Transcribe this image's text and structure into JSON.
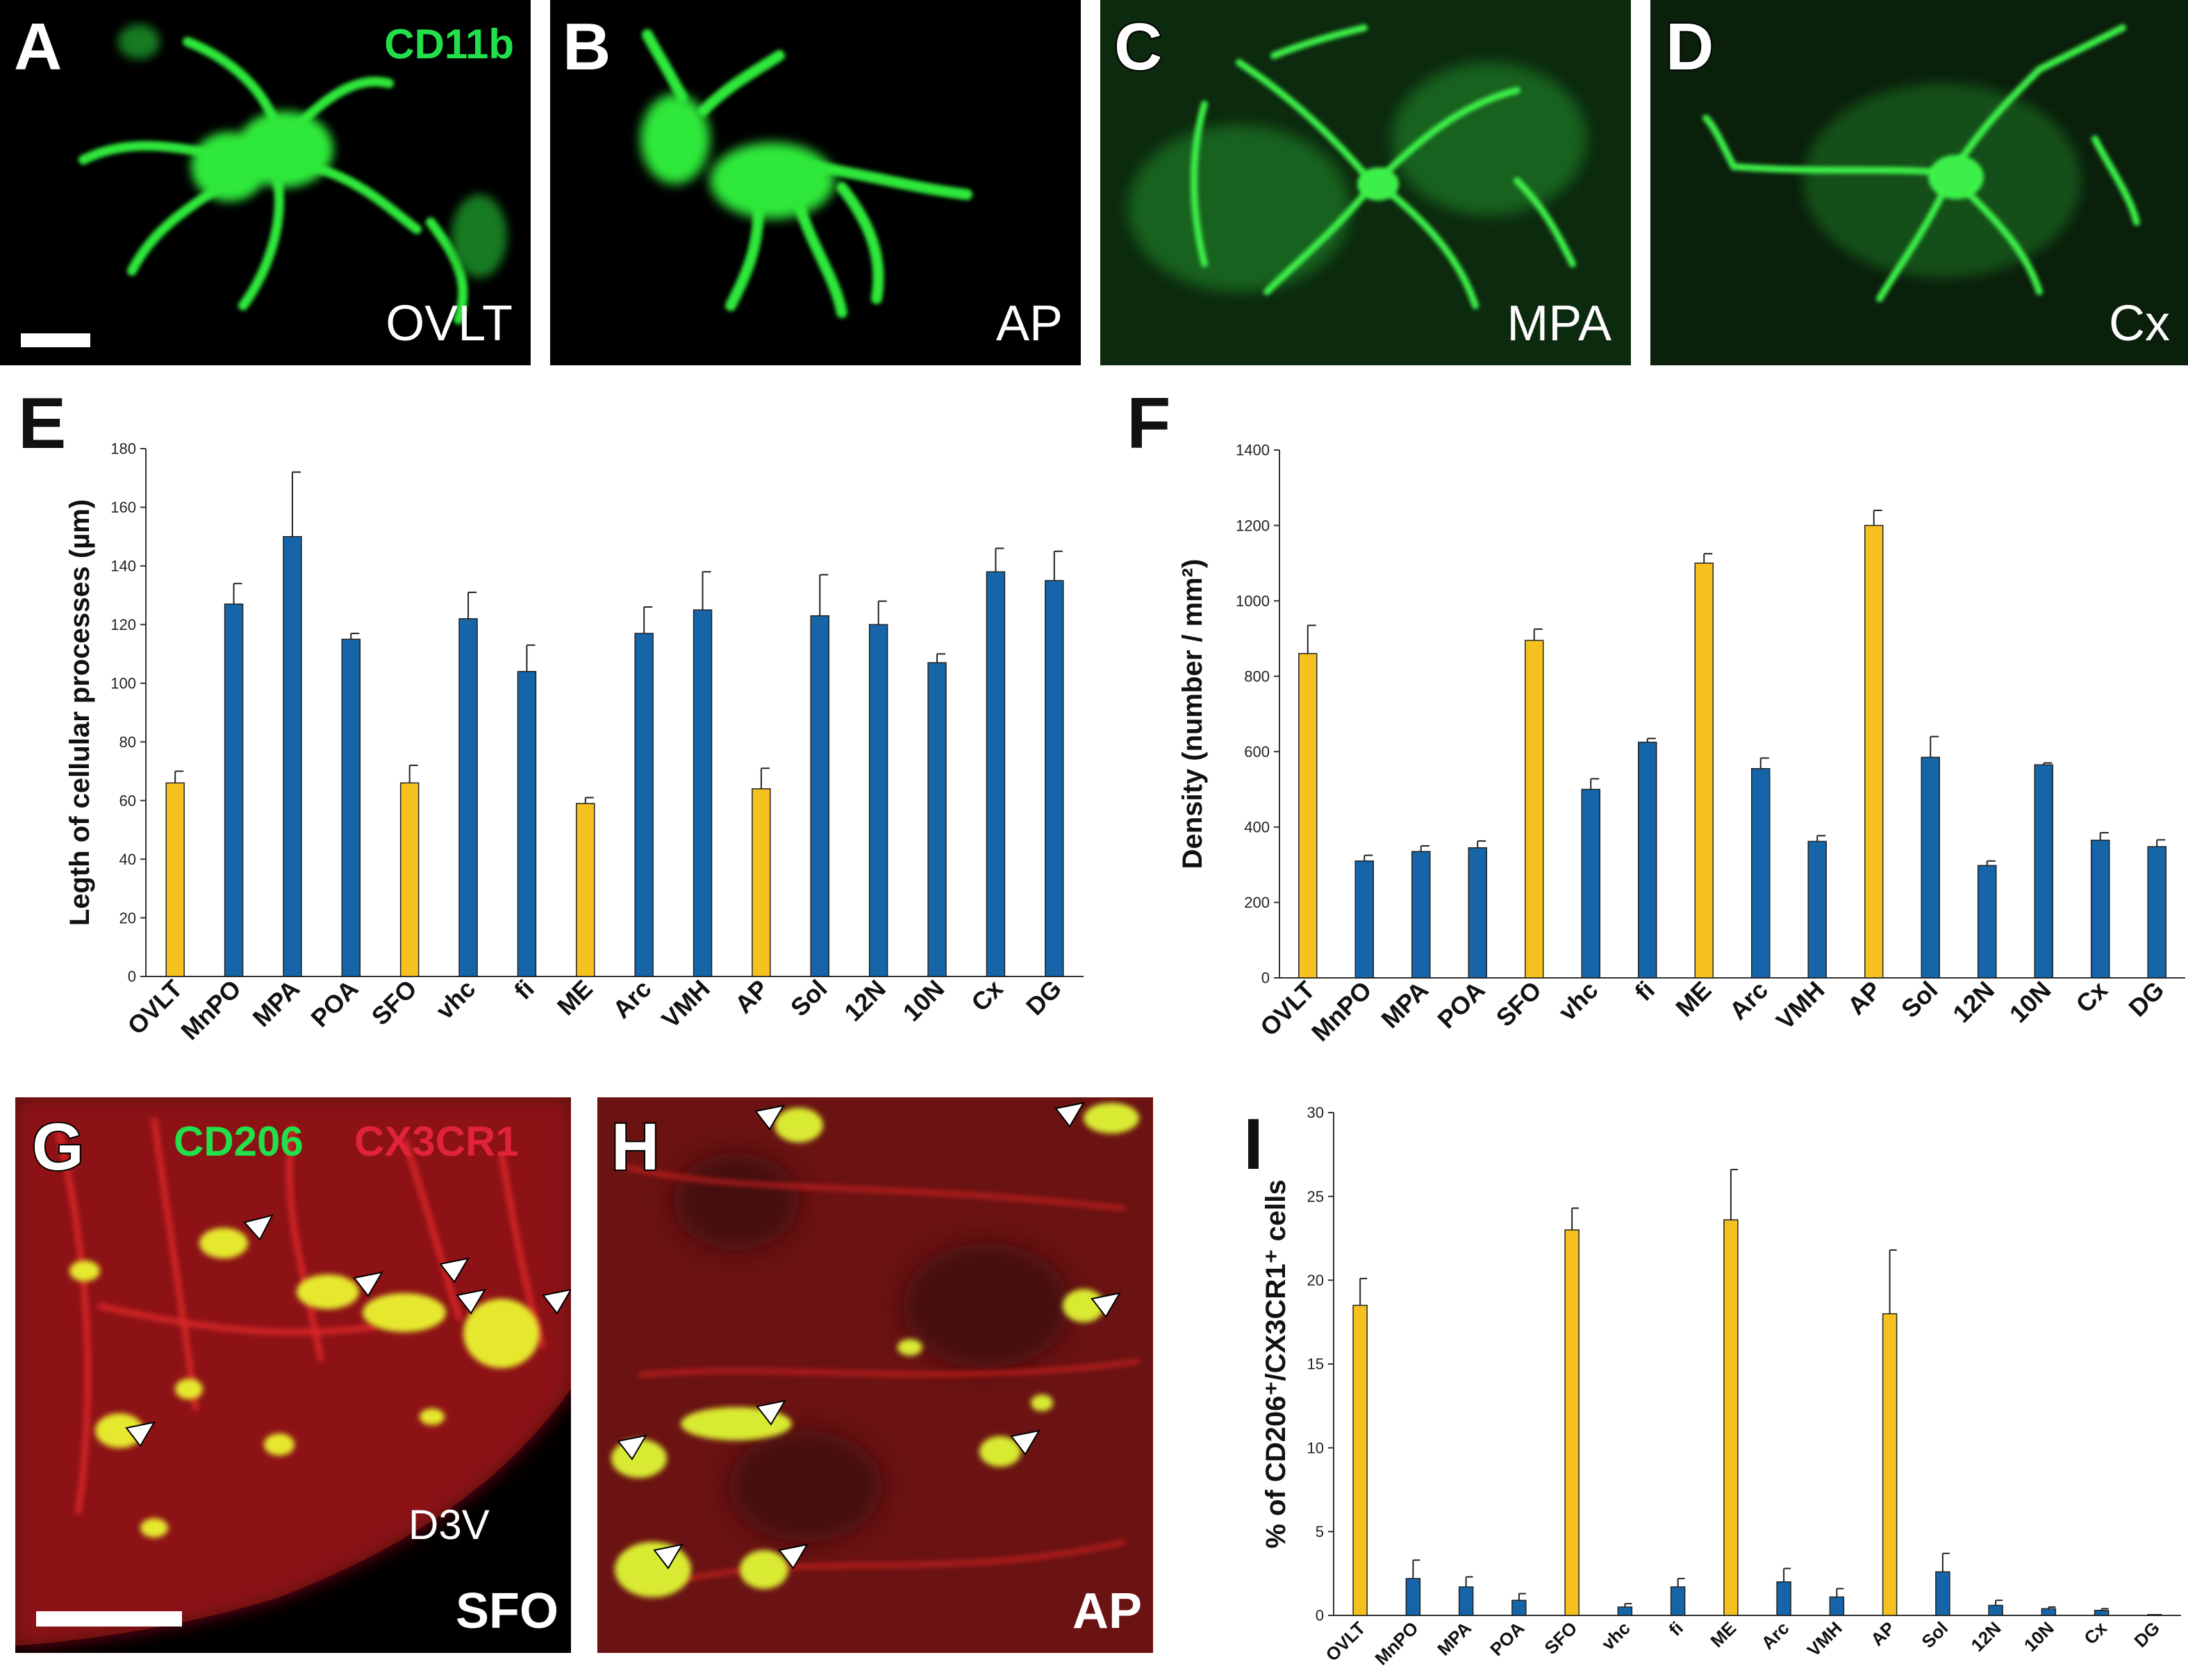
{
  "panels": {
    "A": {
      "letter": "A",
      "stain": "CD11b",
      "region": "OVLT"
    },
    "B": {
      "letter": "B",
      "region": "AP"
    },
    "C": {
      "letter": "C",
      "region": "MPA"
    },
    "D": {
      "letter": "D",
      "region": "Cx"
    },
    "E": {
      "letter": "E"
    },
    "F": {
      "letter": "F"
    },
    "G": {
      "letter": "G",
      "stain_green": "CD206",
      "stain_red": "CX3CR1",
      "label_d3v": "D3V",
      "region": "SFO"
    },
    "H": {
      "letter": "H",
      "region": "AP"
    },
    "I": {
      "letter": "I"
    }
  },
  "colors": {
    "yellow_bar": "#F5C11E",
    "blue_bar": "#1565A8",
    "green_stain": "#22E04A",
    "red_stain": "#E0233A"
  },
  "chart_data": [
    {
      "id": "E",
      "type": "bar",
      "ylabel": "Legth of cellular processes (µm)",
      "ylim": [
        0,
        180
      ],
      "yticks": [
        0,
        20,
        40,
        60,
        80,
        100,
        120,
        140,
        160,
        180
      ],
      "categories": [
        "OVLT",
        "MnPO",
        "MPA",
        "POA",
        "SFO",
        "vhc",
        "fi",
        "ME",
        "Arc",
        "VMH",
        "AP",
        "Sol",
        "12N",
        "10N",
        "Cx",
        "DG"
      ],
      "values": [
        66,
        127,
        150,
        115,
        66,
        122,
        104,
        59,
        117,
        125,
        64,
        123,
        120,
        107,
        138,
        135
      ],
      "errors": [
        4,
        7,
        22,
        2,
        6,
        9,
        9,
        2,
        9,
        13,
        7,
        14,
        8,
        3,
        8,
        10
      ],
      "highlight": [
        true,
        false,
        false,
        false,
        true,
        false,
        false,
        true,
        false,
        false,
        true,
        false,
        false,
        false,
        false,
        false
      ]
    },
    {
      "id": "F",
      "type": "bar",
      "ylabel": "Density (number / mm²)",
      "ylim": [
        0,
        1400
      ],
      "yticks": [
        0,
        200,
        400,
        600,
        800,
        1000,
        1200,
        1400
      ],
      "categories": [
        "OVLT",
        "MnPO",
        "MPA",
        "POA",
        "SFO",
        "vhc",
        "fi",
        "ME",
        "Arc",
        "VMH",
        "AP",
        "Sol",
        "12N",
        "10N",
        "Cx",
        "DG"
      ],
      "values": [
        860,
        310,
        335,
        345,
        895,
        500,
        625,
        1100,
        555,
        362,
        1200,
        585,
        298,
        565,
        365,
        348
      ],
      "errors": [
        75,
        15,
        15,
        18,
        30,
        28,
        10,
        25,
        28,
        15,
        40,
        55,
        12,
        5,
        20,
        18
      ],
      "highlight": [
        true,
        false,
        false,
        false,
        true,
        false,
        false,
        true,
        false,
        false,
        true,
        false,
        false,
        false,
        false,
        false
      ]
    },
    {
      "id": "I",
      "type": "bar",
      "ylabel": "% of  CD206⁺/CX3CR1⁺ cells",
      "ylim": [
        0,
        30
      ],
      "yticks": [
        0,
        5,
        10,
        15,
        20,
        25,
        30
      ],
      "categories": [
        "OVLT",
        "MnPO",
        "MPA",
        "POA",
        "SFO",
        "vhc",
        "fi",
        "ME",
        "Arc",
        "VMH",
        "AP",
        "Sol",
        "12N",
        "10N",
        "Cx",
        "DG"
      ],
      "values": [
        18.5,
        2.2,
        1.7,
        0.9,
        23.0,
        0.5,
        1.7,
        23.6,
        2.0,
        1.1,
        18.0,
        2.6,
        0.6,
        0.4,
        0.3,
        0.05
      ],
      "errors": [
        1.6,
        1.1,
        0.6,
        0.4,
        1.3,
        0.2,
        0.5,
        3.0,
        0.8,
        0.5,
        3.8,
        1.1,
        0.3,
        0.1,
        0.1,
        0.0
      ],
      "highlight": [
        true,
        false,
        false,
        false,
        true,
        false,
        false,
        true,
        false,
        false,
        true,
        false,
        false,
        false,
        false,
        false
      ]
    }
  ]
}
